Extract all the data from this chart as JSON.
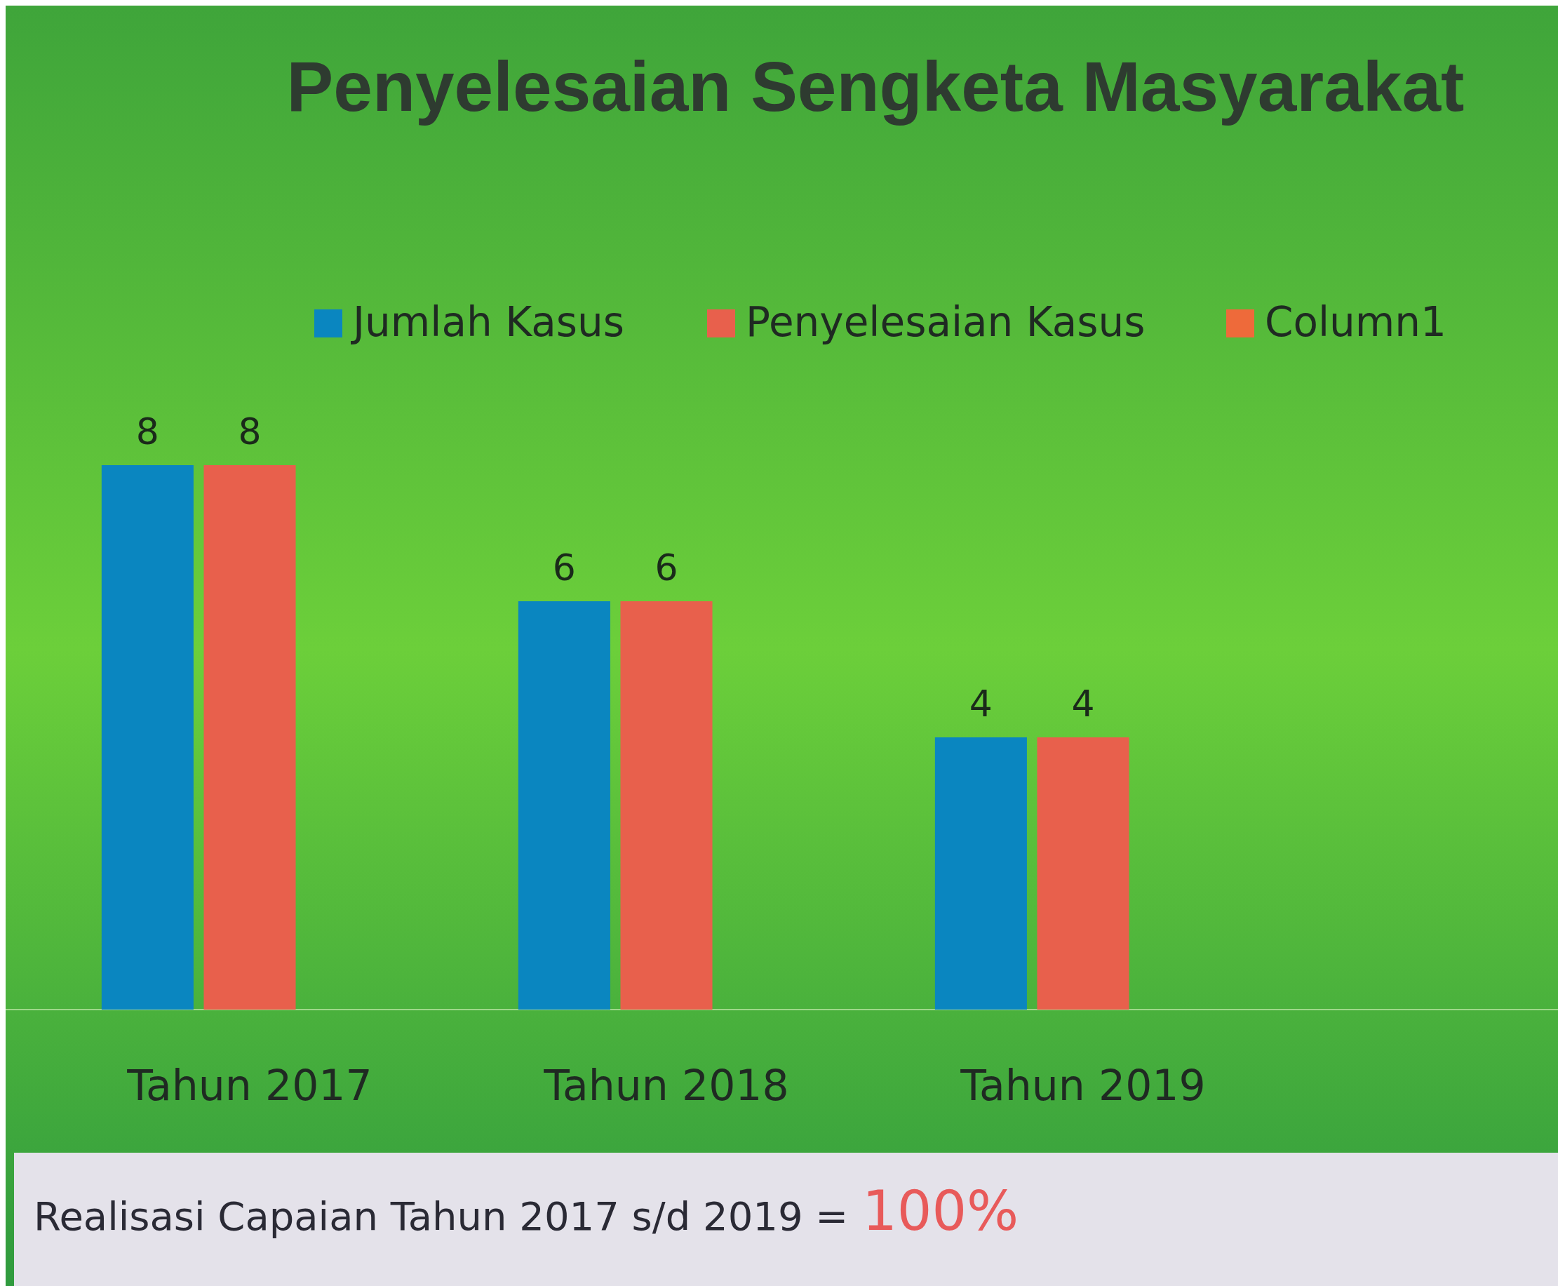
{
  "chart_data": {
    "type": "bar",
    "title": "Penyelesaian Sengketa Masyarakat",
    "categories": [
      "Tahun 2017",
      "Tahun 2018",
      "Tahun 2019"
    ],
    "series": [
      {
        "name": "Jumlah Kasus",
        "color": "#0a86c0",
        "values": [
          8,
          6,
          4
        ]
      },
      {
        "name": "Penyelesaian Kasus",
        "color": "#e8604c",
        "values": [
          8,
          6,
          4
        ]
      },
      {
        "name": "Column1",
        "color": "#ee6a3a",
        "values": [
          null,
          null,
          null
        ]
      }
    ],
    "data_labels": true,
    "legend": "top",
    "grid": false,
    "annotations": [
      "Realisasi Capaian Tahun 2017  s/d 2019 =",
      "100%"
    ]
  }
}
